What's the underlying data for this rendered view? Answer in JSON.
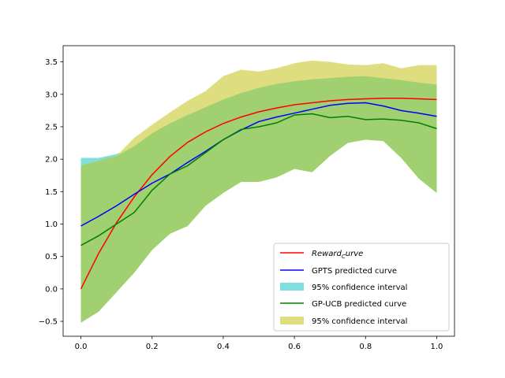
{
  "chart_data": {
    "type": "line",
    "title": "",
    "xlabel": "",
    "ylabel": "",
    "xlim": [
      -0.05,
      1.05
    ],
    "ylim": [
      -0.73,
      3.75
    ],
    "grid": false,
    "legend_position": "lower-right",
    "x_ticks": [
      0.0,
      0.2,
      0.4,
      0.6,
      0.8,
      1.0
    ],
    "x_tick_labels": [
      "0.0",
      "0.2",
      "0.4",
      "0.6",
      "0.8",
      "1.0"
    ],
    "y_ticks": [
      -0.5,
      0.0,
      0.5,
      1.0,
      1.5,
      2.0,
      2.5,
      3.0,
      3.5
    ],
    "y_tick_labels": [
      "−0.5",
      "0.0",
      "0.5",
      "1.0",
      "1.5",
      "2.0",
      "2.5",
      "3.0",
      "3.5"
    ],
    "x": [
      0.0,
      0.05,
      0.1,
      0.15,
      0.2,
      0.25,
      0.3,
      0.35,
      0.4,
      0.45,
      0.5,
      0.55,
      0.6,
      0.65,
      0.7,
      0.75,
      0.8,
      0.85,
      0.9,
      0.95,
      1.0
    ],
    "legend": [
      {
        "label_main": "Reward",
        "label_sub": "C",
        "label_tail": "urve",
        "kind": "line",
        "color": "#ff0000"
      },
      {
        "label": "GPTS predicted curve",
        "kind": "line",
        "color": "#0000ff"
      },
      {
        "label": "95% confidence interval",
        "kind": "patch",
        "color": "#7fdfdf"
      },
      {
        "label": "GP-UCB predicted curve",
        "kind": "line",
        "color": "#008000"
      },
      {
        "label": "95% confidence interval",
        "kind": "patch",
        "color": "#dede80"
      }
    ],
    "series": [
      {
        "name": "Reward curve",
        "color": "#ff0000",
        "values": [
          0.0,
          0.55,
          1.02,
          1.42,
          1.76,
          2.04,
          2.26,
          2.42,
          2.55,
          2.65,
          2.73,
          2.79,
          2.84,
          2.87,
          2.9,
          2.92,
          2.93,
          2.94,
          2.94,
          2.93,
          2.92
        ]
      },
      {
        "name": "GPTS predicted curve",
        "color": "#0000ff",
        "values": [
          0.97,
          1.12,
          1.28,
          1.46,
          1.63,
          1.77,
          1.95,
          2.12,
          2.3,
          2.45,
          2.58,
          2.65,
          2.71,
          2.77,
          2.83,
          2.86,
          2.87,
          2.82,
          2.75,
          2.71,
          2.66
        ]
      },
      {
        "name": "GPTS 95% confidence interval",
        "color": "#7fdfdf",
        "upper": [
          2.02,
          2.02,
          2.08,
          2.2,
          2.4,
          2.55,
          2.68,
          2.8,
          2.92,
          3.02,
          3.1,
          3.16,
          3.2,
          3.23,
          3.25,
          3.27,
          3.28,
          3.25,
          3.22,
          3.18,
          3.15
        ],
        "lower": [
          1.85,
          1.85,
          1.95,
          2.05,
          2.1,
          2.12,
          2.15,
          2.18,
          2.22,
          2.25,
          2.3,
          2.33,
          2.35,
          2.38,
          2.4,
          2.42,
          2.43,
          2.4,
          2.35,
          2.3,
          2.25
        ]
      },
      {
        "name": "GP-UCB predicted curve",
        "color": "#008000",
        "values": [
          0.67,
          0.82,
          1.0,
          1.18,
          1.52,
          1.77,
          1.9,
          2.1,
          2.3,
          2.46,
          2.5,
          2.56,
          2.68,
          2.7,
          2.64,
          2.66,
          2.61,
          2.62,
          2.6,
          2.56,
          2.47
        ]
      },
      {
        "name": "GP-UCB 95% confidence interval",
        "color": "#dede80",
        "upper": [
          1.9,
          1.98,
          2.05,
          2.33,
          2.53,
          2.72,
          2.9,
          3.05,
          3.28,
          3.38,
          3.35,
          3.4,
          3.48,
          3.52,
          3.5,
          3.46,
          3.45,
          3.48,
          3.4,
          3.45,
          3.45
        ],
        "lower": [
          -0.52,
          -0.35,
          -0.05,
          0.25,
          0.6,
          0.85,
          0.97,
          1.28,
          1.48,
          1.65,
          1.65,
          1.72,
          1.85,
          1.8,
          2.05,
          2.25,
          2.3,
          2.28,
          2.02,
          1.7,
          1.48
        ]
      }
    ]
  }
}
